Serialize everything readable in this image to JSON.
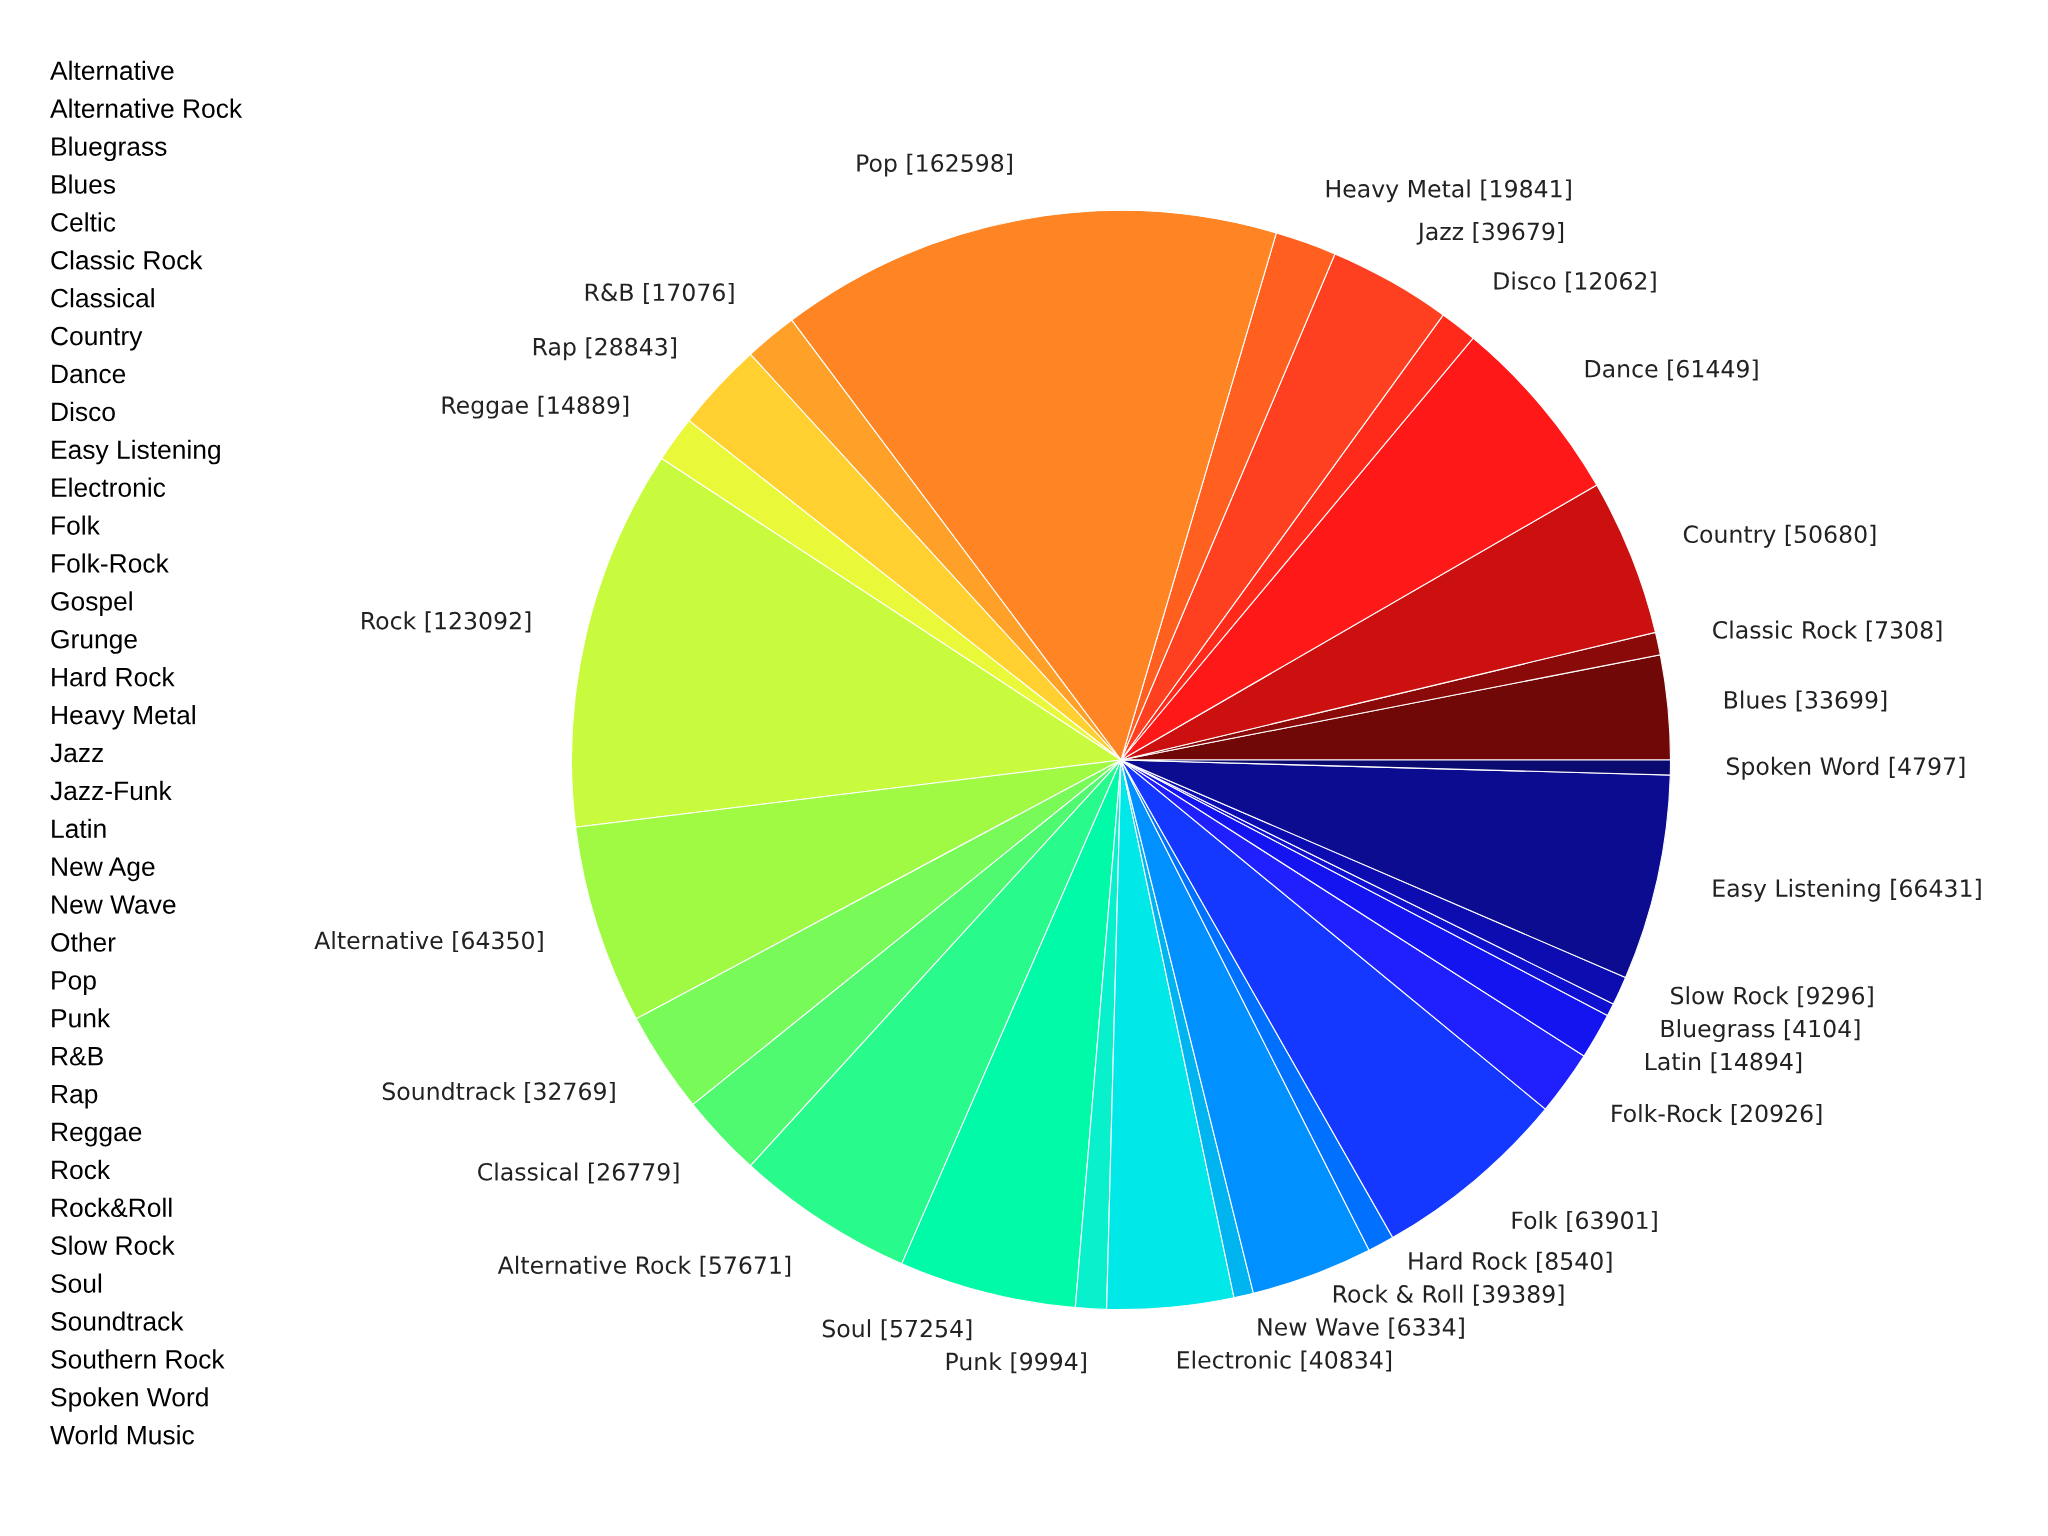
{
  "chart_data": {
    "type": "pie",
    "categories": [
      "Blues [33699]",
      "Classic Rock [7308]",
      "Country [50680]",
      "Dance [61449]",
      "Disco [12062]",
      "Jazz [39679]",
      "Heavy Metal [19841]",
      "Pop [162598]",
      "R&B [17076]",
      "Rap [28843]",
      "Reggae [14889]",
      "Rock [123092]",
      "Alternative [64350]",
      "Soundtrack [32769]",
      "Classical [26779]",
      "Alternative Rock [57671]",
      "Soul [57254]",
      "Punk [9994]",
      "Electronic [40834]",
      "New Wave [6334]",
      "Rock & Roll [39389]",
      "Hard Rock [8540]",
      "Folk [63901]",
      "Folk-Rock [20926]",
      "Latin [14894]",
      "Bluegrass [4104]",
      "Slow Rock [9296]",
      "Easy Listening [66431]",
      "Spoken Word [4797]"
    ],
    "values": [
      33699,
      7308,
      50680,
      61449,
      12062,
      39679,
      19841,
      162598,
      17076,
      28843,
      14889,
      123092,
      64350,
      32769,
      26779,
      57671,
      57254,
      9994,
      40834,
      6334,
      39389,
      8540,
      63901,
      20926,
      14894,
      4104,
      9296,
      66431,
      4797
    ],
    "colors": [
      "#700808",
      "#8a0a0a",
      "#cc1010",
      "#ff1818",
      "#ff2a1a",
      "#ff4020",
      "#ff6020",
      "#ff8424",
      "#ffa028",
      "#ffd030",
      "#eaf83a",
      "#c8fa3e",
      "#a0fa44",
      "#78fa58",
      "#50fa70",
      "#28fa8c",
      "#00faa8",
      "#08f0cc",
      "#00e8e8",
      "#00b4f0",
      "#0090ff",
      "#0070ff",
      "#1438ff",
      "#2020ff",
      "#1414f0",
      "#1010d0",
      "#0c0cb0",
      "#0c0c90",
      "#0a0a70"
    ],
    "annotations": [
      "Alternative",
      "Alternative Rock",
      "Bluegrass",
      "Blues",
      "Celtic",
      "Classic Rock",
      "Classical",
      "Country",
      "Dance",
      "Disco",
      "Easy Listening",
      "Electronic",
      "Folk",
      "Folk-Rock",
      "Gospel",
      "Grunge",
      "Hard Rock",
      "Heavy Metal",
      "Jazz",
      "Jazz-Funk",
      "Latin",
      "New Age",
      "New Wave",
      "Other",
      "Pop",
      "Punk",
      "R&B",
      "Rap",
      "Reggae",
      "Rock",
      "Rock&Roll",
      "Slow Rock",
      "Soul",
      "Soundtrack",
      "Southern Rock",
      "Spoken Word",
      "World Music"
    ]
  }
}
